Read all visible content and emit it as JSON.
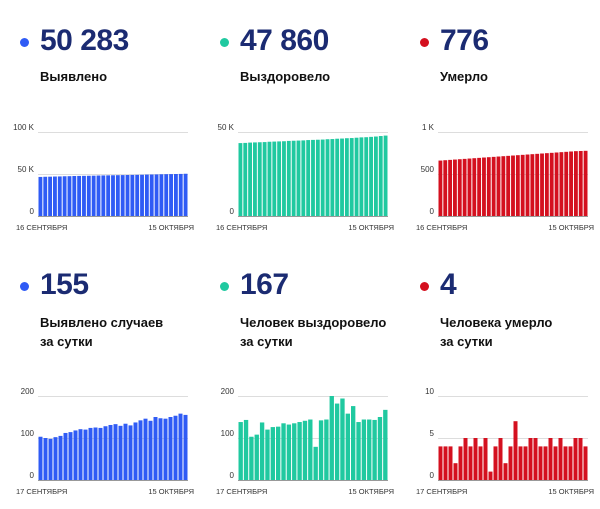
{
  "colors": {
    "blue": "#2f5bf5",
    "green": "#20c9a0",
    "red": "#d4101f",
    "number": "#1b2b72"
  },
  "panels": [
    {
      "value": "50 283",
      "label": "Выявлено",
      "color": "#2f5bf5",
      "chart_data": {
        "type": "bar",
        "yticks": [
          "0",
          "50 K",
          "100 K"
        ],
        "ylim": [
          0,
          100000
        ],
        "xlabel_start": "16 СЕНТЯБРЯ",
        "xlabel_end": "15 ОКТЯБРЯ",
        "values": [
          46500,
          46700,
          46800,
          47000,
          47100,
          47300,
          47400,
          47600,
          47700,
          47800,
          47900,
          48000,
          48200,
          48300,
          48400,
          48500,
          48600,
          48700,
          48800,
          48900,
          49000,
          49100,
          49300,
          49400,
          49500,
          49700,
          49800,
          49900,
          50000,
          50100,
          50283
        ]
      }
    },
    {
      "value": "47 860",
      "label": "Выздоровело",
      "color": "#20c9a0",
      "chart_data": {
        "type": "bar",
        "yticks": [
          "0",
          "50 K"
        ],
        "ylim": [
          0,
          50000
        ],
        "xlabel_start": "16 СЕНТЯБРЯ",
        "xlabel_end": "15 ОКТЯБРЯ",
        "values": [
          43400,
          43500,
          43700,
          43800,
          43900,
          44000,
          44200,
          44300,
          44400,
          44500,
          44700,
          44800,
          44900,
          45000,
          45200,
          45300,
          45400,
          45500,
          45700,
          45800,
          46000,
          46100,
          46300,
          46400,
          46600,
          46800,
          46900,
          47100,
          47300,
          47600,
          47860
        ]
      }
    },
    {
      "value": "776",
      "label": "Умерло",
      "color": "#d4101f",
      "chart_data": {
        "type": "bar",
        "yticks": [
          "0",
          "500",
          "1 K"
        ],
        "ylim": [
          0,
          1000
        ],
        "xlabel_start": "16 СЕНТЯБРЯ",
        "xlabel_end": "15 ОКТЯБРЯ",
        "values": [
          660,
          664,
          668,
          672,
          676,
          680,
          684,
          688,
          692,
          696,
          700,
          704,
          708,
          712,
          716,
          720,
          724,
          728,
          732,
          736,
          740,
          744,
          748,
          752,
          756,
          760,
          764,
          768,
          772,
          774,
          776
        ]
      }
    },
    {
      "value": "155",
      "label": "Выявлено случаев\nза сутки",
      "color": "#2f5bf5",
      "chart_data": {
        "type": "bar",
        "yticks": [
          "0",
          "100",
          "200"
        ],
        "ylim": [
          0,
          200
        ],
        "xlabel_start": "17 СЕНТЯБРЯ",
        "xlabel_end": "15 ОКТЯБРЯ",
        "values": [
          103,
          100,
          98,
          102,
          105,
          112,
          114,
          118,
          121,
          120,
          124,
          125,
          124,
          128,
          131,
          133,
          129,
          134,
          130,
          137,
          142,
          146,
          141,
          150,
          147,
          146,
          150,
          153,
          158,
          155
        ]
      }
    },
    {
      "value": "167",
      "label": "Человек выздоровело\nза сутки",
      "color": "#20c9a0",
      "chart_data": {
        "type": "bar",
        "yticks": [
          "0",
          "100",
          "200"
        ],
        "ylim": [
          0,
          200
        ],
        "xlabel_start": "17 СЕНТЯБРЯ",
        "xlabel_end": "15 ОКТЯБРЯ",
        "values": [
          138,
          143,
          103,
          108,
          137,
          120,
          126,
          127,
          135,
          132,
          135,
          138,
          141,
          144,
          79,
          142,
          144,
          200,
          182,
          194,
          158,
          176,
          138,
          144,
          144,
          143,
          150,
          167
        ]
      }
    },
    {
      "value": "4",
      "label": "Человека умерло\nза сутки",
      "color": "#d4101f",
      "chart_data": {
        "type": "bar",
        "yticks": [
          "0",
          "5",
          "10"
        ],
        "ylim": [
          0,
          10
        ],
        "xlabel_start": "17 СЕНТЯБРЯ",
        "xlabel_end": "15 ОКТЯБРЯ",
        "values": [
          4,
          4,
          4,
          2,
          4,
          5,
          4,
          5,
          4,
          5,
          1,
          4,
          5,
          2,
          4,
          7,
          4,
          4,
          5,
          5,
          4,
          4,
          5,
          4,
          5,
          4,
          4,
          5,
          5,
          4
        ]
      }
    }
  ]
}
